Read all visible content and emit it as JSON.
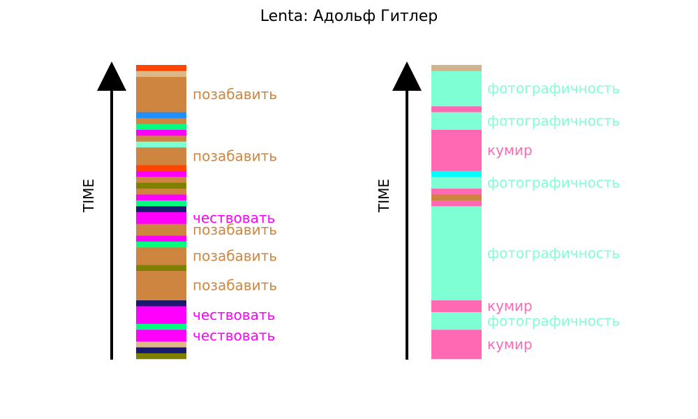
{
  "chart_data": {
    "type": "timeline-strip",
    "title": "Lenta: Адольф Гитлер",
    "colors": {
      "peru": "#cd853f",
      "magenta": "#ff00ff",
      "hotpink": "#ff69b4",
      "aquamarine": "#7fffd4",
      "orangered": "#ff4500",
      "burlywood": "#deb887",
      "tan": "#d2b48c",
      "dodgerblue": "#1e90ff",
      "springgreen": "#00ff7f",
      "navy": "#191970",
      "olive": "#808000",
      "cyan": "#00ffff"
    },
    "panels": [
      {
        "axis_label": "TIME",
        "segments": [
          {
            "color": "#808000",
            "units": 1
          },
          {
            "color": "#191970",
            "units": 1
          },
          {
            "color": "#deb887",
            "units": 1
          },
          {
            "color": "#ff00ff",
            "units": 2,
            "label": "чествовать"
          },
          {
            "color": "#00ff7f",
            "units": 1
          },
          {
            "color": "#ff00ff",
            "units": 3,
            "label": "чествовать"
          },
          {
            "color": "#191970",
            "units": 1
          },
          {
            "color": "#cd853f",
            "units": 5,
            "label": "позабавить"
          },
          {
            "color": "#808000",
            "units": 1
          },
          {
            "color": "#cd853f",
            "units": 3,
            "label": "позабавить"
          },
          {
            "color": "#00ff7f",
            "units": 1
          },
          {
            "color": "#ff00ff",
            "units": 1
          },
          {
            "color": "#cd853f",
            "units": 2,
            "label": "позабавить"
          },
          {
            "color": "#ff00ff",
            "units": 2,
            "label": "чествовать"
          },
          {
            "color": "#191970",
            "units": 1
          },
          {
            "color": "#00ff7f",
            "units": 1
          },
          {
            "color": "#ff00ff",
            "units": 1
          },
          {
            "color": "#cd853f",
            "units": 1
          },
          {
            "color": "#808000",
            "units": 1
          },
          {
            "color": "#cd853f",
            "units": 1
          },
          {
            "color": "#ff00ff",
            "units": 1
          },
          {
            "color": "#ff4500",
            "units": 1
          },
          {
            "color": "#cd853f",
            "units": 3,
            "label": "позабавить"
          },
          {
            "color": "#7fffd4",
            "units": 1
          },
          {
            "color": "#cd853f",
            "units": 1
          },
          {
            "color": "#ff00ff",
            "units": 1
          },
          {
            "color": "#00ff7f",
            "units": 1
          },
          {
            "color": "#cd853f",
            "units": 1
          },
          {
            "color": "#1e90ff",
            "units": 1
          },
          {
            "color": "#cd853f",
            "units": 6,
            "label": "позабавить"
          },
          {
            "color": "#deb887",
            "units": 1
          },
          {
            "color": "#ff4500",
            "units": 1
          }
        ]
      },
      {
        "axis_label": "TIME",
        "segments": [
          {
            "color": "#ff69b4",
            "units": 5,
            "label": "кумир"
          },
          {
            "color": "#7fffd4",
            "units": 3,
            "label": "фотографичность"
          },
          {
            "color": "#ff69b4",
            "units": 2,
            "label": "кумир"
          },
          {
            "color": "#7fffd4",
            "units": 16,
            "label": "фотографичность"
          },
          {
            "color": "#ff69b4",
            "units": 1
          },
          {
            "color": "#cd853f",
            "units": 1
          },
          {
            "color": "#ff69b4",
            "units": 1
          },
          {
            "color": "#7fffd4",
            "units": 2,
            "label": "фотографичность"
          },
          {
            "color": "#00ffff",
            "units": 1
          },
          {
            "color": "#ff69b4",
            "units": 7,
            "label": "кумир"
          },
          {
            "color": "#7fffd4",
            "units": 3,
            "label": "фотографичность"
          },
          {
            "color": "#ff69b4",
            "units": 1
          },
          {
            "color": "#7fffd4",
            "units": 6,
            "label": "фотографичность"
          },
          {
            "color": "#d2b48c",
            "units": 1
          }
        ]
      }
    ]
  }
}
